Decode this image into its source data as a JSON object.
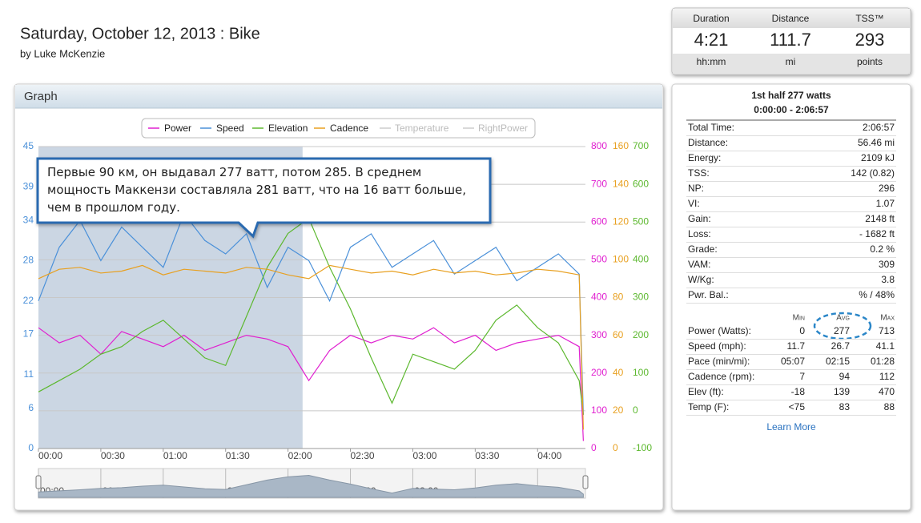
{
  "header": {
    "title": "Saturday, October 12, 2013 : Bike",
    "author": "by Luke McKenzie"
  },
  "summary": [
    {
      "label": "Duration",
      "value": "4:21",
      "unit": "hh:mm"
    },
    {
      "label": "Distance",
      "value": "111.7",
      "unit": "mi"
    },
    {
      "label": "TSS™",
      "value": "293",
      "unit": "points"
    }
  ],
  "panel_title": "Graph",
  "chart_data": {
    "type": "line",
    "annotation": "Первые 90 км, он выдавал 277 ватт, потом 285. В среднем мощность Маккензи составляла 281 ватт, что на 16 ватт больше, чем в прошлом году.",
    "x": [
      0,
      10,
      20,
      30,
      40,
      50,
      60,
      70,
      80,
      90,
      100,
      110,
      120,
      130,
      140,
      150,
      160,
      170,
      180,
      190,
      200,
      210,
      220,
      230,
      240,
      250,
      260,
      262
    ],
    "xlim": [
      0,
      263
    ],
    "xticks": [
      {
        "value": 0,
        "label": "00:00"
      },
      {
        "value": 30,
        "label": "00:30"
      },
      {
        "value": 60,
        "label": "01:00"
      },
      {
        "value": 90,
        "label": "01:30"
      },
      {
        "value": 120,
        "label": "02:00"
      },
      {
        "value": 150,
        "label": "02:30"
      },
      {
        "value": 180,
        "label": "03:00"
      },
      {
        "value": 210,
        "label": "03:30"
      },
      {
        "value": 240,
        "label": "04:00"
      }
    ],
    "ylim": [
      0,
      45
    ],
    "yticks": [
      0,
      6,
      11,
      17,
      22,
      28,
      34,
      39,
      45
    ],
    "y2lim": [
      0,
      800
    ],
    "y2ticks": [
      0,
      100,
      200,
      300,
      400,
      500,
      600,
      700,
      800
    ],
    "y3lim": [
      0,
      160
    ],
    "y3ticks": [
      0,
      20,
      40,
      60,
      80,
      100,
      120,
      140,
      160
    ],
    "y4lim": [
      -100,
      700
    ],
    "y4ticks": [
      -100,
      0,
      100,
      200,
      300,
      400,
      500,
      600,
      700
    ],
    "grid": true,
    "highlight": [
      0,
      127
    ],
    "series": [
      {
        "name": "Power",
        "color": "#e020d0",
        "axis": "y2",
        "values": [
          320,
          280,
          300,
          250,
          310,
          290,
          270,
          300,
          260,
          280,
          300,
          290,
          270,
          180,
          260,
          300,
          280,
          300,
          290,
          320,
          280,
          300,
          260,
          280,
          290,
          300,
          270,
          20
        ]
      },
      {
        "name": "Speed",
        "color": "#4a90d9",
        "axis": "y",
        "values": [
          22,
          30,
          34,
          28,
          33,
          30,
          27,
          35,
          31,
          29,
          32,
          24,
          30,
          28,
          22,
          30,
          32,
          27,
          29,
          31,
          26,
          28,
          30,
          25,
          27,
          29,
          26,
          5
        ]
      },
      {
        "name": "Elevation",
        "color": "#5cb82e",
        "axis": "y4",
        "values": [
          50,
          80,
          110,
          150,
          170,
          210,
          240,
          190,
          140,
          120,
          250,
          380,
          470,
          510,
          380,
          270,
          140,
          20,
          150,
          130,
          110,
          160,
          240,
          280,
          220,
          180,
          80,
          -10
        ]
      },
      {
        "name": "Cadence",
        "color": "#e8a020",
        "axis": "y3",
        "values": [
          90,
          95,
          96,
          93,
          94,
          97,
          92,
          95,
          94,
          93,
          96,
          95,
          92,
          90,
          97,
          95,
          93,
          94,
          92,
          95,
          93,
          94,
          92,
          93,
          95,
          94,
          92,
          10
        ]
      }
    ],
    "inactive_series": [
      "Temperature",
      "RightPower"
    ]
  },
  "stats": {
    "heading": "1st half 277 watts",
    "range": "0:00:00 - 2:06:57",
    "rows": [
      [
        "Total Time:",
        "2:06:57"
      ],
      [
        "Distance:",
        "56.46 mi"
      ],
      [
        "Energy:",
        "2109 kJ"
      ],
      [
        "TSS:",
        "142 (0.82)"
      ],
      [
        "NP:",
        "296"
      ],
      [
        "VI:",
        "1.07"
      ],
      [
        "Gain:",
        "2148 ft"
      ],
      [
        "Loss:",
        "- 1682 ft"
      ],
      [
        "Grade:",
        "0.2 %"
      ],
      [
        "VAM:",
        "309"
      ],
      [
        "W/Kg:",
        "3.8"
      ],
      [
        "Pwr. Bal.:",
        "% / 48%"
      ]
    ],
    "columns": [
      "Min",
      "Avg",
      "Max"
    ],
    "detail_rows": [
      [
        "Power (Watts):",
        "0",
        "277",
        "713"
      ],
      [
        "Speed (mph):",
        "11.7",
        "26.7",
        "41.1"
      ],
      [
        "Pace (min/mi):",
        "05:07",
        "02:15",
        "01:28"
      ],
      [
        "Cadence (rpm):",
        "7",
        "94",
        "112"
      ],
      [
        "Elev (ft):",
        "-18",
        "139",
        "470"
      ],
      [
        "Temp (F):",
        "<75",
        "83",
        "88"
      ]
    ],
    "link": "Learn More"
  }
}
